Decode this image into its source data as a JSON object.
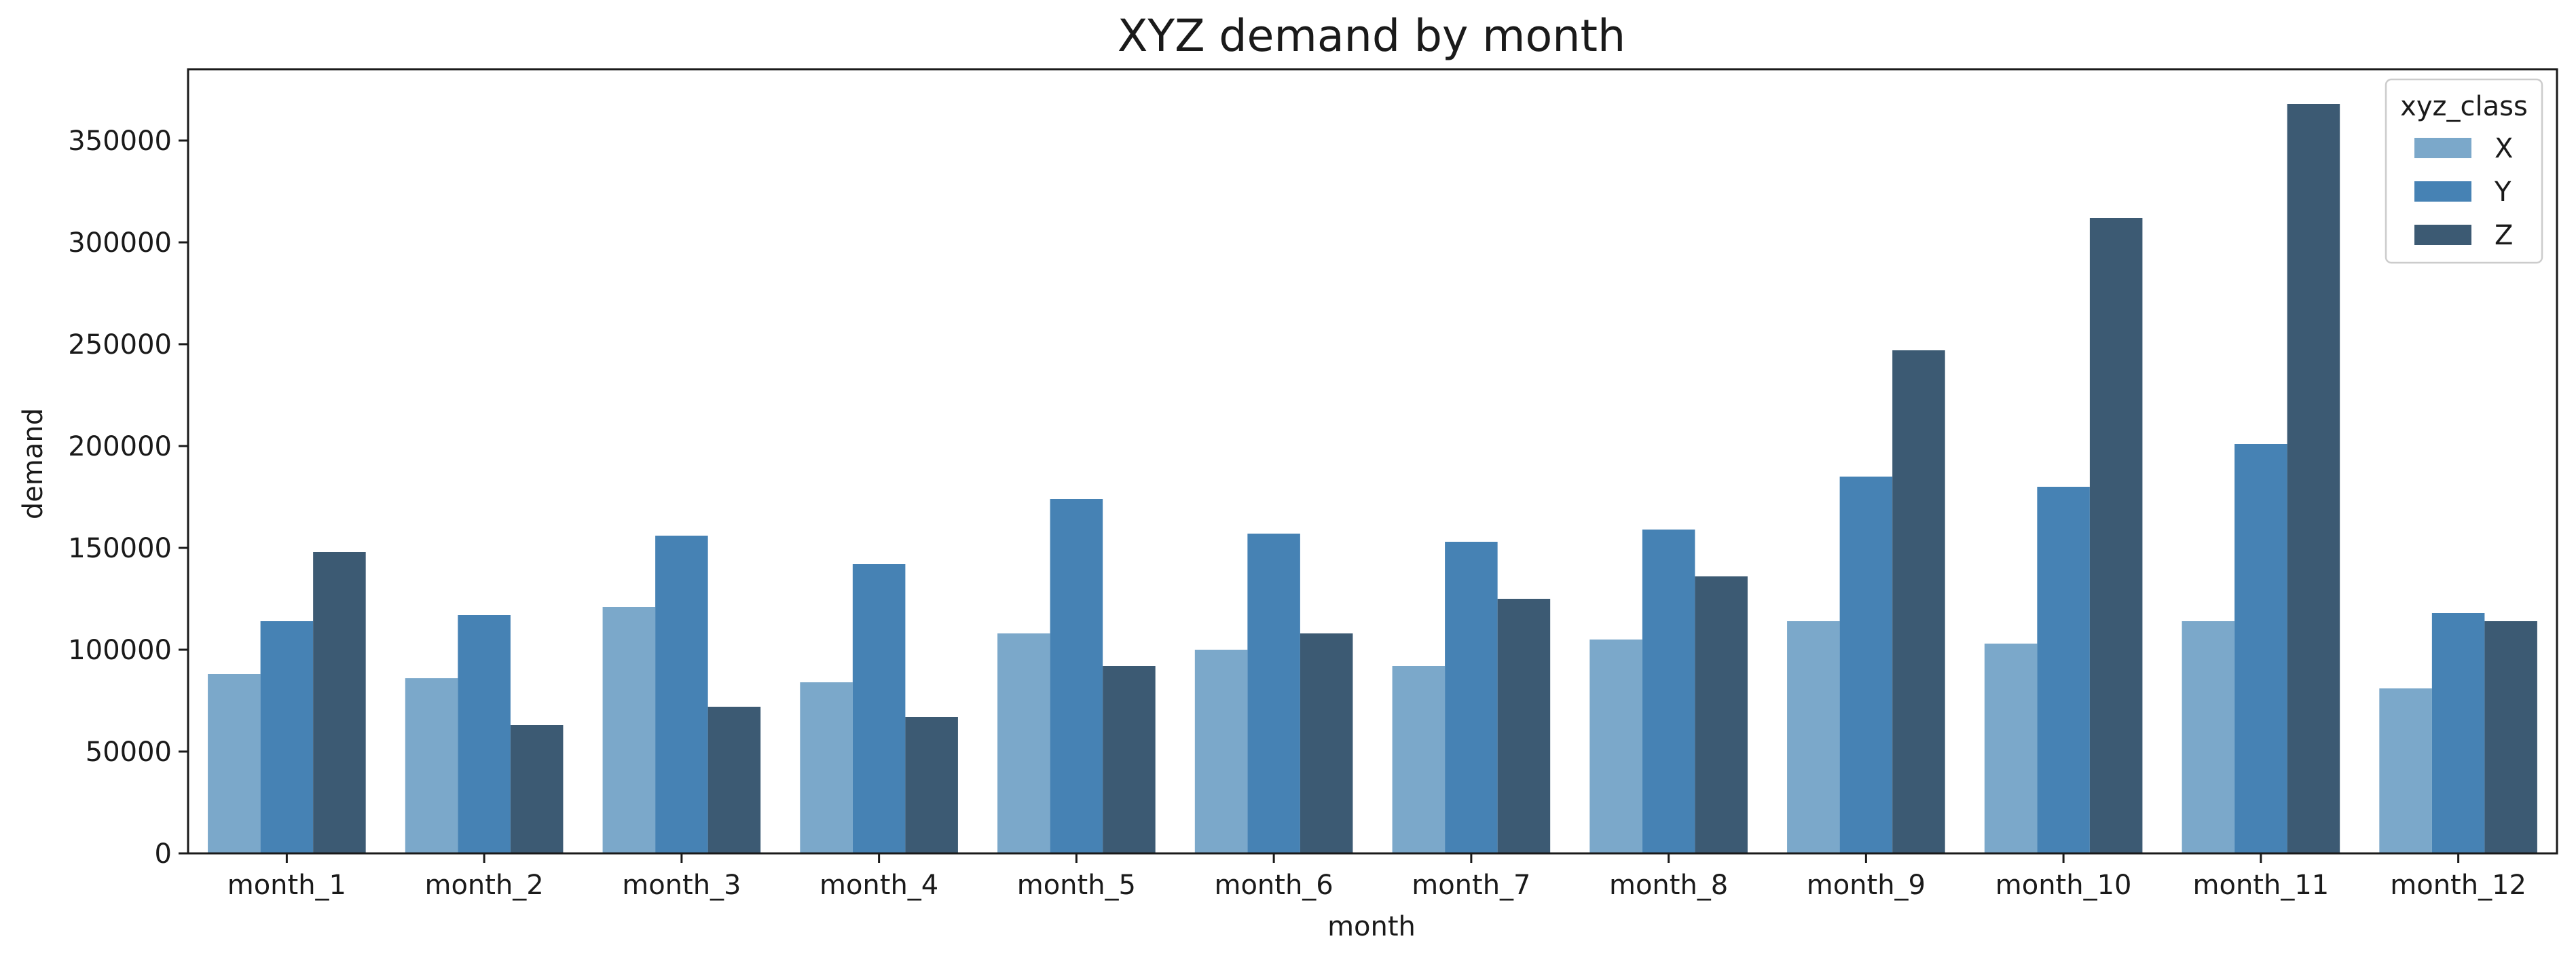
{
  "chart_data": {
    "type": "bar",
    "title": "XYZ demand by month",
    "xlabel": "month",
    "ylabel": "demand",
    "ylim": [
      0,
      385000
    ],
    "yticks": [
      0,
      50000,
      100000,
      150000,
      200000,
      250000,
      300000,
      350000
    ],
    "categories": [
      "month_1",
      "month_2",
      "month_3",
      "month_4",
      "month_5",
      "month_6",
      "month_7",
      "month_8",
      "month_9",
      "month_10",
      "month_11",
      "month_12"
    ],
    "legend": {
      "title": "xyz_class",
      "placement": "top-right"
    },
    "grid": false,
    "series": [
      {
        "name": "X",
        "color": "#7ba8ca",
        "values": [
          88000,
          86000,
          121000,
          84000,
          108000,
          100000,
          92000,
          105000,
          114000,
          103000,
          114000,
          81000
        ]
      },
      {
        "name": "Y",
        "color": "#4682b4",
        "values": [
          114000,
          117000,
          156000,
          142000,
          174000,
          157000,
          153000,
          159000,
          185000,
          180000,
          201000,
          118000
        ]
      },
      {
        "name": "Z",
        "color": "#3c5a73",
        "values": [
          148000,
          63000,
          72000,
          67000,
          92000,
          108000,
          125000,
          136000,
          247000,
          312000,
          368000,
          114000
        ]
      }
    ]
  }
}
